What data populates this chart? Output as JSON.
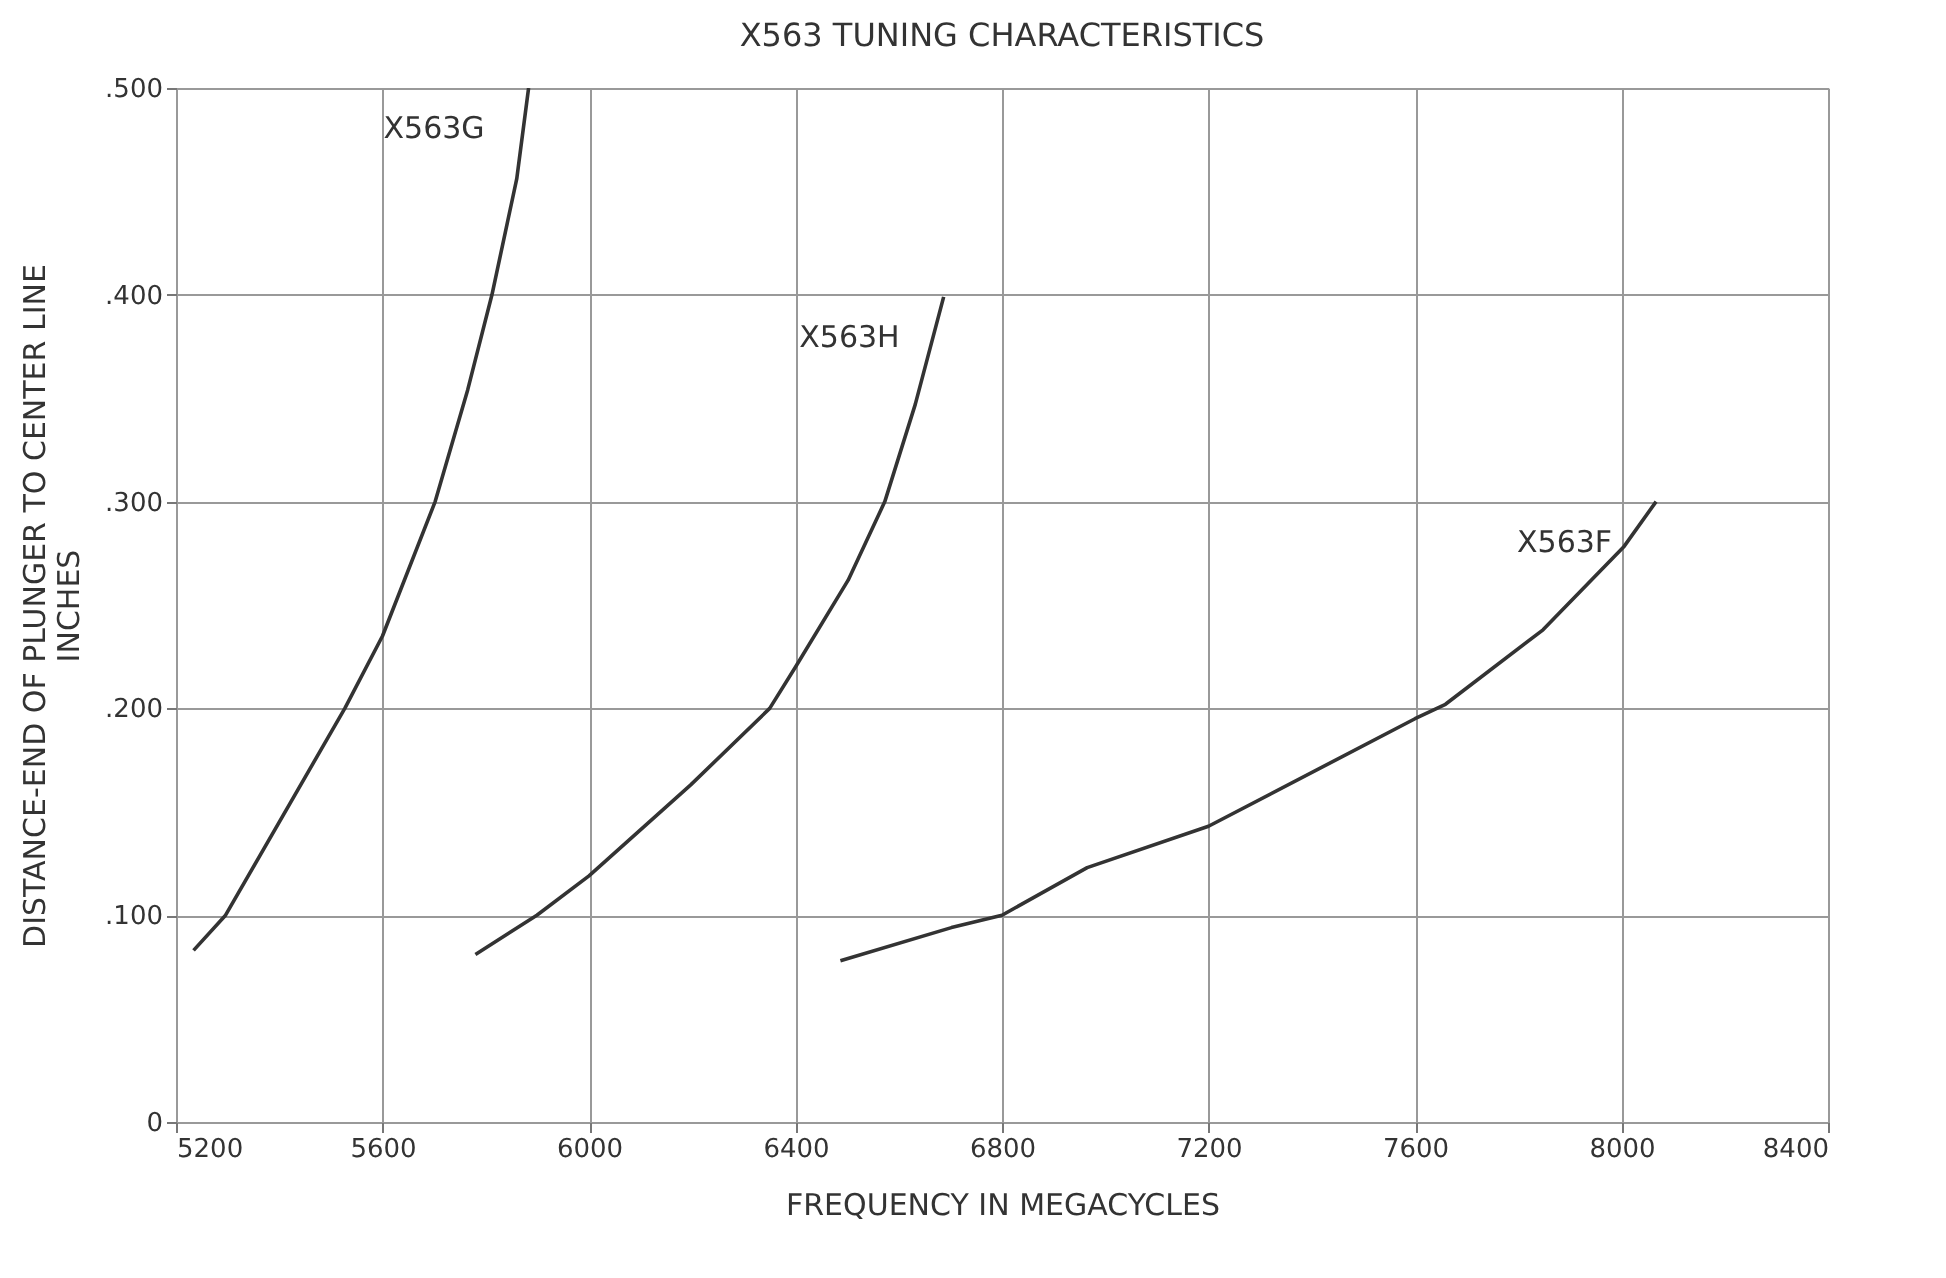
{
  "chart_data": {
    "type": "line",
    "title": "X563 TUNING CHARACTERISTICS",
    "xlabel": "FREQUENCY IN MEGACYCLES",
    "ylabel": "DISTANCE-END OF PLUNGER TO CENTER LINE\nINCHES",
    "series": [
      {
        "name": "X563G",
        "color": "#333333",
        "x": [
          5234,
          5296,
          5527,
          5600,
          5702,
          5765,
          5812,
          5860,
          5883
        ],
        "values": [
          0.083,
          0.1,
          0.2,
          0.235,
          0.3,
          0.354,
          0.4,
          0.456,
          0.5
        ]
      },
      {
        "name": "X563H",
        "color": "#333333",
        "x": [
          5780,
          5899,
          6000,
          6197,
          6350,
          6400,
          6502,
          6573,
          6632,
          6687
        ],
        "values": [
          0.081,
          0.1,
          0.119,
          0.163,
          0.2,
          0.22,
          0.262,
          0.3,
          0.347,
          0.399
        ]
      },
      {
        "name": "X563F",
        "color": "#333333",
        "x": [
          6487,
          6702,
          6800,
          6965,
          7200,
          7600,
          7659,
          7848,
          8004,
          8067
        ],
        "values": [
          0.078,
          0.094,
          0.1,
          0.123,
          0.143,
          0.195,
          0.202,
          0.238,
          0.278,
          0.3
        ]
      }
    ],
    "xlim": [
      5200,
      8400
    ],
    "xticks": [
      5200,
      5600,
      6000,
      6400,
      6800,
      7200,
      7600,
      8000,
      8400
    ],
    "ylim": [
      0,
      0.5
    ],
    "yticks": [
      {
        "value": 0,
        "label": "0"
      },
      {
        "value": 0.1,
        "label": ".100"
      },
      {
        "value": 0.2,
        "label": ".200"
      },
      {
        "value": 0.3,
        "label": ".300"
      },
      {
        "value": 0.4,
        "label": ".400"
      },
      {
        "value": 0.5,
        "label": ".500"
      }
    ],
    "grid": true,
    "legend": false,
    "marker": "none",
    "line_style": "solid"
  }
}
